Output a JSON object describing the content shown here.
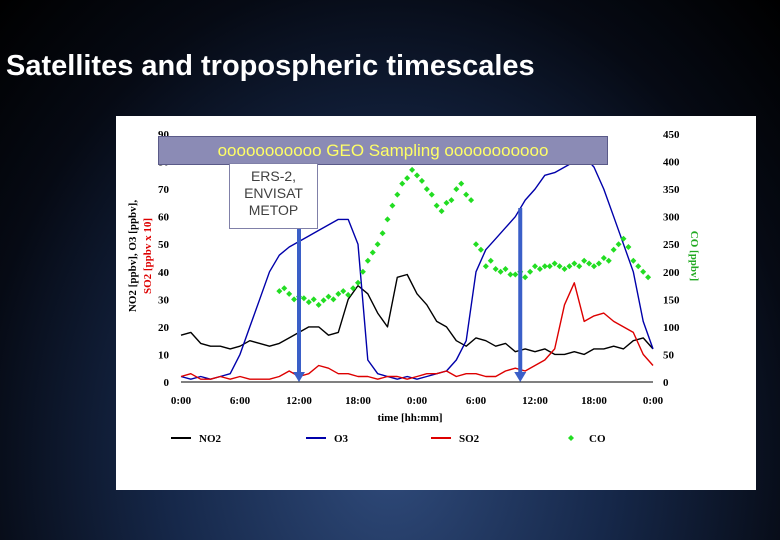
{
  "slide": {
    "title": "Satellites and tropospheric timescales"
  },
  "annotations": {
    "geo_banner": "ooooooooooo GEO Sampling ooooooooooo",
    "leo_satellites": [
      "ERS-2,",
      "ENVISAT",
      "METOP"
    ]
  },
  "colors": {
    "no2": "#000000",
    "o3": "#0000aa",
    "so2": "#dd0000",
    "co": "#22dd22",
    "arrow": "#3a5fc8",
    "left_axis_title_1": "#000000",
    "left_axis_title_2": "#dd0000",
    "right_axis_title": "#22aa22"
  },
  "chart_data": {
    "type": "line",
    "title": "",
    "xlabel": "time [hh:mm]",
    "ylabel_left_1": "NO2 [ppbv], O3 [ppbv],",
    "ylabel_left_2": "SO2 [ppbv x 10]",
    "ylabel_right": "CO [ppbv]",
    "x_unit": "hours",
    "xlim": [
      0,
      48
    ],
    "ylim_left": [
      0,
      90
    ],
    "ylim_right": [
      0,
      450
    ],
    "x_ticks": [
      "0:00",
      "6:00",
      "12:00",
      "18:00",
      "0:00",
      "6:00",
      "12:00",
      "18:00",
      "0:00"
    ],
    "y_ticks_left": [
      "0",
      "10",
      "20",
      "30",
      "40",
      "50",
      "60",
      "70",
      "80",
      "90"
    ],
    "y_ticks_right": [
      "0",
      "50",
      "100",
      "150",
      "200",
      "250",
      "300",
      "350",
      "400",
      "450"
    ],
    "legend_position": "bottom",
    "series": [
      {
        "name": "NO2",
        "axis": "left",
        "style": "line",
        "x": [
          0,
          1,
          2,
          3,
          4,
          5,
          6,
          7,
          8,
          9,
          10,
          11,
          12,
          13,
          14,
          15,
          16,
          17,
          18,
          19,
          20,
          21,
          22,
          23,
          24,
          25,
          26,
          27,
          28,
          29,
          30,
          31,
          32,
          33,
          34,
          35,
          36,
          37,
          38,
          39,
          40,
          41,
          42,
          43,
          44,
          45,
          46,
          47,
          48
        ],
        "y": [
          17,
          18,
          14,
          13,
          13,
          12,
          13,
          15,
          14,
          13,
          14,
          16,
          18,
          20,
          20,
          17,
          18,
          30,
          35,
          32,
          25,
          20,
          38,
          39,
          32,
          28,
          22,
          20,
          15,
          13,
          16,
          15,
          13,
          14,
          11,
          12,
          11,
          12,
          10,
          10,
          11,
          10,
          12,
          12,
          13,
          12,
          15,
          16,
          12
        ]
      },
      {
        "name": "O3",
        "axis": "left",
        "style": "line",
        "x": [
          0,
          1,
          2,
          3,
          4,
          5,
          6,
          7,
          8,
          9,
          10,
          11,
          12,
          13,
          14,
          15,
          16,
          17,
          18,
          19,
          20,
          21,
          22,
          23,
          24,
          25,
          26,
          27,
          28,
          29,
          30,
          31,
          32,
          33,
          34,
          35,
          36,
          37,
          38,
          39,
          40,
          41,
          42,
          43,
          44,
          45,
          46,
          47,
          48
        ],
        "y": [
          2,
          1,
          2,
          1,
          2,
          3,
          10,
          20,
          30,
          40,
          46,
          49,
          51,
          53,
          55,
          57,
          59,
          59,
          50,
          8,
          3,
          2,
          1,
          2,
          1,
          2,
          3,
          4,
          8,
          15,
          40,
          48,
          52,
          56,
          60,
          66,
          70,
          75,
          76,
          78,
          80,
          82,
          78,
          70,
          60,
          50,
          40,
          22,
          12
        ]
      },
      {
        "name": "SO2",
        "axis": "left",
        "style": "line",
        "x": [
          0,
          1,
          2,
          3,
          4,
          5,
          6,
          7,
          8,
          9,
          10,
          11,
          12,
          13,
          14,
          15,
          16,
          17,
          18,
          19,
          20,
          21,
          22,
          23,
          24,
          25,
          26,
          27,
          28,
          29,
          30,
          31,
          32,
          33,
          34,
          35,
          36,
          37,
          38,
          39,
          40,
          41,
          42,
          43,
          44,
          45,
          46,
          47,
          48
        ],
        "y": [
          2,
          3,
          1,
          1,
          2,
          1,
          2,
          1,
          1,
          1,
          2,
          4,
          2,
          3,
          6,
          5,
          3,
          3,
          2,
          2,
          1,
          2,
          2,
          1,
          2,
          3,
          3,
          4,
          2,
          3,
          3,
          2,
          2,
          4,
          5,
          4,
          6,
          8,
          12,
          28,
          36,
          22,
          24,
          25,
          22,
          20,
          18,
          10,
          6
        ]
      },
      {
        "name": "CO",
        "axis": "right",
        "style": "diamond",
        "x": [
          10,
          10.5,
          11,
          11.5,
          12,
          12.5,
          13,
          13.5,
          14,
          14.5,
          15,
          15.5,
          16,
          16.5,
          17,
          17.5,
          18,
          18.5,
          19,
          19.5,
          20,
          20.5,
          21,
          21.5,
          22,
          22.5,
          23,
          23.5,
          24,
          24.5,
          25,
          25.5,
          26,
          26.5,
          27,
          27.5,
          28,
          28.5,
          29,
          29.5,
          30,
          30.5,
          31,
          31.5,
          32,
          32.5,
          33,
          33.5,
          34,
          34.5,
          35,
          35.5,
          36,
          36.5,
          37,
          37.5,
          38,
          38.5,
          39,
          39.5,
          40,
          40.5,
          41,
          41.5,
          42,
          42.5,
          43,
          43.5,
          44,
          44.5,
          45,
          45.5,
          46,
          46.5,
          47,
          47.5
        ],
        "y": [
          165,
          170,
          160,
          150,
          155,
          152,
          145,
          150,
          140,
          148,
          155,
          150,
          160,
          165,
          158,
          170,
          180,
          200,
          220,
          235,
          250,
          270,
          295,
          320,
          340,
          360,
          370,
          385,
          375,
          365,
          350,
          340,
          320,
          310,
          325,
          330,
          350,
          360,
          340,
          330,
          250,
          240,
          210,
          220,
          205,
          200,
          205,
          195,
          195,
          200,
          190,
          200,
          210,
          205,
          210,
          210,
          215,
          210,
          205,
          210,
          215,
          210,
          220,
          215,
          210,
          215,
          225,
          220,
          240,
          250,
          260,
          245,
          220,
          210,
          200,
          190
        ]
      }
    ],
    "markers": [
      {
        "label": "LEO overpass",
        "x": 12
      },
      {
        "label": "LEO overpass",
        "x": 34.5
      }
    ]
  },
  "legend": {
    "items": [
      {
        "label": "NO2",
        "style": "line",
        "color": "#000000"
      },
      {
        "label": "O3",
        "style": "line",
        "color": "#0000aa"
      },
      {
        "label": "SO2",
        "style": "line",
        "color": "#dd0000"
      },
      {
        "label": "CO",
        "style": "diamond",
        "color": "#22dd22"
      }
    ]
  }
}
